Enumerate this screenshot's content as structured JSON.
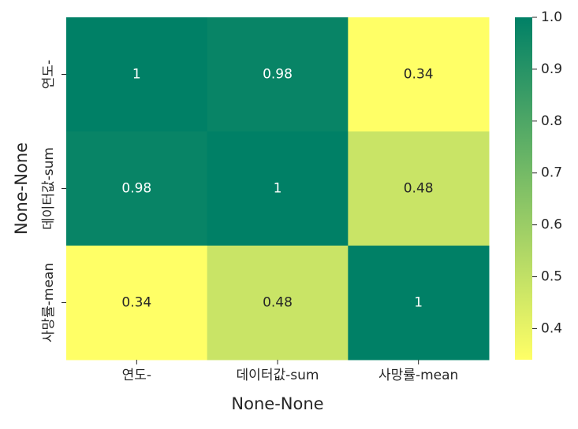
{
  "chart_data": {
    "type": "heatmap",
    "title": "",
    "xlabel": "None-None",
    "ylabel": "None-None",
    "x_categories": [
      "연도-",
      "데이터값-sum",
      "사망률-mean"
    ],
    "y_categories": [
      "연도-",
      "데이터값-sum",
      "사망률-mean"
    ],
    "values": [
      [
        1.0,
        0.98,
        0.34
      ],
      [
        0.98,
        1.0,
        0.48
      ],
      [
        0.34,
        0.48,
        1.0
      ]
    ],
    "cell_labels": [
      [
        "1",
        "0.98",
        "0.34"
      ],
      [
        "0.98",
        "1",
        "0.48"
      ],
      [
        "0.34",
        "0.48",
        "1"
      ]
    ],
    "colormap": "summer_r",
    "colors": {
      "low": "#ffff66",
      "high": "#008066"
    },
    "colorbar": {
      "range": [
        0.34,
        1.0
      ],
      "ticks": [
        1.0,
        0.9,
        0.8,
        0.7,
        0.6,
        0.5,
        0.4
      ],
      "tick_labels": [
        "1.0",
        "0.9",
        "0.8",
        "0.7",
        "0.6",
        "0.5",
        "0.4"
      ]
    },
    "grid": false,
    "legend": "colorbar-right"
  }
}
